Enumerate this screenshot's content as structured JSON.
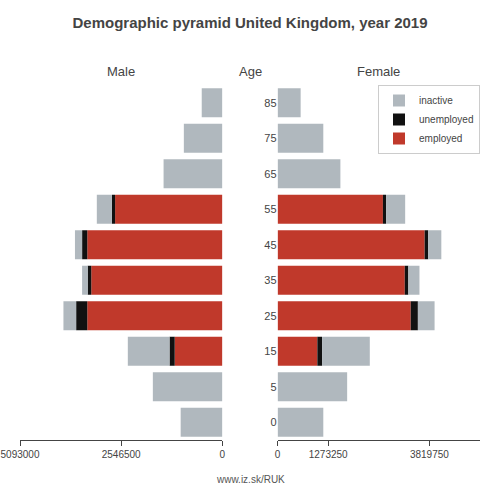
{
  "chart_data": [
    {
      "type": "bar",
      "orientation": "horizontal",
      "stacked": true,
      "grid": false,
      "title": "Demographic pyramid United Kingdom, year 2019",
      "subtitle": "Male",
      "ylabel": "Age",
      "categories": [
        85,
        75,
        65,
        55,
        45,
        35,
        25,
        15,
        5,
        0
      ],
      "series": [
        {
          "name": "employed",
          "color": "#c0392b",
          "values": [
            0,
            0,
            0,
            2700000,
            3400000,
            3300000,
            3400000,
            1200000,
            0,
            0
          ]
        },
        {
          "name": "unemployed",
          "color": "#111111",
          "values": [
            0,
            0,
            0,
            80000,
            130000,
            90000,
            280000,
            130000,
            0,
            0
          ]
        },
        {
          "name": "inactive",
          "color": "#b0b8be",
          "values": [
            520000,
            970000,
            1480000,
            380000,
            180000,
            140000,
            320000,
            1050000,
            1750000,
            1050000
          ]
        }
      ],
      "xlim": [
        5093000,
        0
      ],
      "xticks": [
        5093000,
        2546500,
        0
      ]
    },
    {
      "type": "bar",
      "orientation": "horizontal",
      "stacked": true,
      "grid": false,
      "subtitle": "Female",
      "legend": "upper right",
      "categories": [
        85,
        75,
        65,
        55,
        45,
        35,
        25,
        15,
        5,
        0
      ],
      "series": [
        {
          "name": "employed",
          "color": "#c0392b",
          "values": [
            0,
            0,
            0,
            2650000,
            3700000,
            3200000,
            3350000,
            1000000,
            0,
            0
          ]
        },
        {
          "name": "unemployed",
          "color": "#111111",
          "values": [
            0,
            0,
            0,
            80000,
            90000,
            90000,
            180000,
            120000,
            0,
            0
          ]
        },
        {
          "name": "inactive",
          "color": "#b0b8be",
          "values": [
            580000,
            1150000,
            1580000,
            480000,
            330000,
            280000,
            420000,
            1200000,
            1750000,
            1150000
          ]
        }
      ],
      "xlim": [
        0,
        5093000
      ],
      "xticks": [
        0,
        1273250,
        3819750
      ],
      "annotations": [
        "www.iz.sk/RUK"
      ]
    }
  ]
}
